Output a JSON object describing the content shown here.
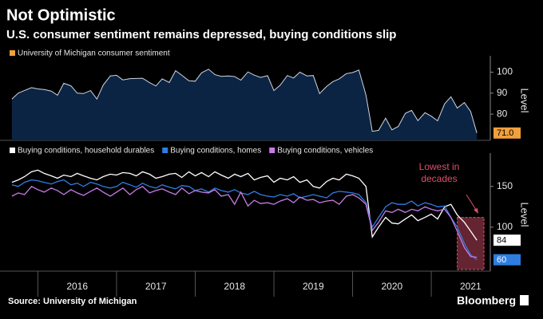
{
  "title": "Not Optimistic",
  "subtitle": "U.S. consumer sentiment remains depressed, buying conditions slip",
  "source": "Source: University of Michigan",
  "brand": "Bloomberg",
  "chart_data": [
    {
      "type": "area",
      "ylabel": "Level",
      "xlim": [
        2015.6,
        2021.75
      ],
      "ylim": [
        67.5,
        105.5
      ],
      "yticks": [
        80,
        90,
        100
      ],
      "fill": "#0c2443",
      "line_color": "#cfd6e2",
      "x": [
        2015.67,
        2015.75,
        2015.83,
        2015.92,
        2016,
        2016.08,
        2016.17,
        2016.25,
        2016.33,
        2016.42,
        2016.5,
        2016.58,
        2016.67,
        2016.75,
        2016.83,
        2016.92,
        2017,
        2017.08,
        2017.17,
        2017.25,
        2017.33,
        2017.42,
        2017.5,
        2017.58,
        2017.67,
        2017.75,
        2017.83,
        2017.92,
        2018,
        2018.08,
        2018.17,
        2018.25,
        2018.33,
        2018.42,
        2018.5,
        2018.58,
        2018.67,
        2018.75,
        2018.83,
        2018.92,
        2019,
        2019.08,
        2019.17,
        2019.25,
        2019.33,
        2019.42,
        2019.5,
        2019.58,
        2019.67,
        2019.75,
        2019.83,
        2019.92,
        2020,
        2020.08,
        2020.17,
        2020.25,
        2020.33,
        2020.42,
        2020.5,
        2020.58,
        2020.67,
        2020.75,
        2020.83,
        2020.92,
        2021,
        2021.08,
        2021.17,
        2021.25,
        2021.33,
        2021.42,
        2021.5,
        2021.58
      ],
      "series": [
        {
          "name": "University of Michigan consumer sentiment",
          "color": "#f2a03d",
          "values": [
            87.2,
            90,
            91.3,
            92.6,
            92,
            91.7,
            91,
            89,
            94.7,
            93.5,
            90,
            89.8,
            91.2,
            87.2,
            93.8,
            98.2,
            98.5,
            96.3,
            96.9,
            97,
            97.1,
            95,
            93.4,
            96.8,
            95.1,
            100.7,
            98.5,
            95.9,
            95.7,
            99.7,
            101.4,
            98.8,
            98,
            98.2,
            97.9,
            96.2,
            100.1,
            98.6,
            97.5,
            98.3,
            91.2,
            93.8,
            98.4,
            97.2,
            100,
            98.2,
            98.4,
            89.8,
            93.2,
            95.5,
            96.8,
            99.3,
            99.8,
            101,
            89.1,
            71.8,
            72.3,
            78.1,
            72.5,
            74.1,
            80.4,
            81.8,
            76.9,
            80.7,
            79,
            76.8,
            84.9,
            88.3,
            82.9,
            85.5,
            81.2,
            71
          ],
          "value_labels": [
            null,
            null,
            null,
            null,
            null,
            null,
            null,
            null,
            null,
            null,
            null,
            null,
            null,
            null,
            null,
            null,
            null,
            null,
            null,
            null,
            null,
            null,
            null,
            null,
            null,
            null,
            null,
            null,
            null,
            null,
            null,
            null,
            null,
            null,
            null,
            null,
            null,
            null,
            null,
            null,
            null,
            null,
            null,
            null,
            null,
            null,
            null,
            null,
            null,
            null,
            null,
            null,
            null,
            null,
            null,
            null,
            null,
            null,
            null,
            null,
            null,
            null,
            null,
            null,
            null,
            null,
            null,
            null,
            null,
            null,
            null,
            "71.0"
          ]
        }
      ]
    },
    {
      "type": "line",
      "ylabel": "Level",
      "xlim": [
        2015.6,
        2021.75
      ],
      "ylim": [
        46,
        185
      ],
      "yticks": [
        100,
        150
      ],
      "xticks": [
        2016,
        2017,
        2018,
        2019,
        2020,
        2021
      ],
      "annotation": "Lowest in decades",
      "highlight_x": [
        2021.33,
        2021.67
      ],
      "highlight_color": "#e0506c",
      "x": [
        2015.67,
        2015.75,
        2015.83,
        2015.92,
        2016,
        2016.08,
        2016.17,
        2016.25,
        2016.33,
        2016.42,
        2016.5,
        2016.58,
        2016.67,
        2016.75,
        2016.83,
        2016.92,
        2017,
        2017.08,
        2017.17,
        2017.25,
        2017.33,
        2017.42,
        2017.5,
        2017.58,
        2017.67,
        2017.75,
        2017.83,
        2017.92,
        2018,
        2018.08,
        2018.17,
        2018.25,
        2018.33,
        2018.42,
        2018.5,
        2018.58,
        2018.67,
        2018.75,
        2018.83,
        2018.92,
        2019,
        2019.08,
        2019.17,
        2019.25,
        2019.33,
        2019.42,
        2019.5,
        2019.58,
        2019.67,
        2019.75,
        2019.83,
        2019.92,
        2020,
        2020.08,
        2020.17,
        2020.25,
        2020.33,
        2020.42,
        2020.5,
        2020.58,
        2020.67,
        2020.75,
        2020.83,
        2020.92,
        2021,
        2021.08,
        2021.17,
        2021.25,
        2021.33,
        2021.42,
        2021.5,
        2021.58
      ],
      "series": [
        {
          "name": "Buying conditions, household durables",
          "color": "#ffffff",
          "end_label": true,
          "values": [
            155,
            158,
            162,
            168,
            170,
            166,
            163,
            160,
            164,
            162,
            166,
            163,
            160,
            158,
            162,
            165,
            164,
            167,
            166,
            163,
            168,
            165,
            160,
            162,
            165,
            166,
            161,
            168,
            163,
            167,
            162,
            168,
            164,
            160,
            165,
            162,
            166,
            158,
            161,
            163,
            155,
            160,
            158,
            162,
            155,
            158,
            150,
            148,
            156,
            160,
            158,
            165,
            163,
            160,
            150,
            88,
            100,
            112,
            105,
            104,
            110,
            115,
            108,
            112,
            116,
            110,
            125,
            128,
            115,
            106,
            95,
            84
          ]
        },
        {
          "name": "Buying conditions, homes",
          "color": "#2f7de1",
          "end_label": true,
          "values": [
            152,
            150,
            155,
            158,
            157,
            155,
            153,
            156,
            158,
            152,
            154,
            150,
            155,
            153,
            150,
            148,
            150,
            155,
            152,
            149,
            154,
            150,
            148,
            152,
            149,
            147,
            151,
            150,
            145,
            147,
            143,
            148,
            145,
            143,
            146,
            142,
            140,
            144,
            140,
            138,
            137,
            140,
            138,
            141,
            136,
            138,
            140,
            138,
            136,
            142,
            144,
            143,
            142,
            140,
            130,
            100,
            112,
            125,
            130,
            128,
            128,
            132,
            126,
            130,
            128,
            125,
            126,
            112,
            100,
            80,
            66,
            60
          ]
        },
        {
          "name": "Buying conditions, vehicles",
          "color": "#c77be6",
          "end_label": false,
          "values": [
            138,
            142,
            140,
            150,
            146,
            143,
            148,
            145,
            140,
            146,
            142,
            139,
            144,
            148,
            143,
            138,
            143,
            148,
            140,
            146,
            150,
            142,
            145,
            147,
            143,
            140,
            148,
            141,
            145,
            143,
            142,
            146,
            138,
            140,
            128,
            143,
            126,
            133,
            129,
            130,
            128,
            132,
            135,
            130,
            137,
            133,
            134,
            130,
            132,
            133,
            128,
            138,
            140,
            136,
            128,
            96,
            106,
            120,
            118,
            122,
            118,
            122,
            120,
            125,
            122,
            120,
            122,
            112,
            95,
            75,
            64,
            63
          ]
        }
      ]
    }
  ]
}
